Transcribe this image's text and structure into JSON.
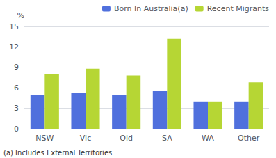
{
  "chart_data": {
    "type": "bar",
    "categories": [
      "NSW",
      "Vic",
      "Qld",
      "SA",
      "WA",
      "Other"
    ],
    "series": [
      {
        "name": "Born In Australia(a)",
        "values": [
          5.0,
          5.2,
          5.0,
          5.5,
          4.0,
          4.0
        ]
      },
      {
        "name": "Recent Migrants",
        "values": [
          8.0,
          8.8,
          7.8,
          13.2,
          4.0,
          6.8
        ]
      }
    ],
    "ylabel": "%",
    "annotation": "(a) Includes External Territories",
    "ylim": [
      0,
      15
    ],
    "yticks": [
      0,
      3,
      6,
      9,
      12,
      15
    ],
    "grid": true,
    "legend": "upper right"
  }
}
